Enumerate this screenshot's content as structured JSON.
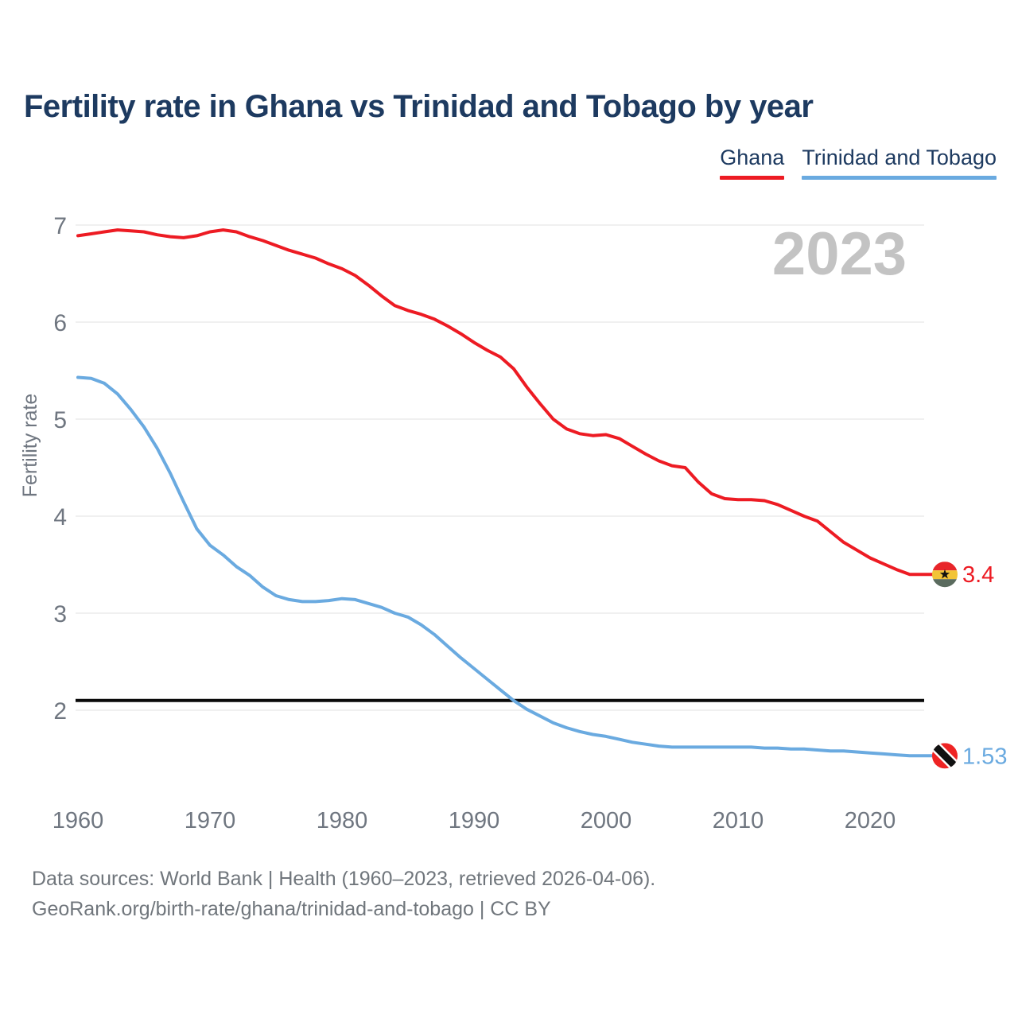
{
  "page_title": "Fertility rate in Ghana vs Trinidad and Tobago by year",
  "watermark": "2023",
  "legend": [
    {
      "label": "Ghana",
      "color": "#ed1b23"
    },
    {
      "label": "Trinidad and Tobago",
      "color": "#6aaae0"
    }
  ],
  "footer": {
    "line1": "Data sources: World Bank | Health (1960–2023, retrieved 2026-04-06).",
    "line2": "GeoRank.org/birth-rate/ghana/trinidad-and-tobago | CC BY"
  },
  "chart_data": {
    "type": "line",
    "title": "Fertility rate in Ghana vs Trinidad and Tobago by year",
    "xlabel": "",
    "ylabel": "Fertility rate",
    "x_ticks": [
      1960,
      1970,
      1980,
      1990,
      2000,
      2010,
      2020
    ],
    "y_ticks": [
      2,
      3,
      4,
      5,
      6,
      7
    ],
    "xlim": [
      1960,
      2023
    ],
    "ylim": [
      1.4,
      7.2
    ],
    "grid": "horizontal",
    "legend_position": "top-right",
    "watermark_year": "2023",
    "reference_line": {
      "value": 2.1,
      "color": "#0a0a0a"
    },
    "start_year": 1960,
    "end_year": 2023,
    "series": [
      {
        "name": "Ghana",
        "color": "#ed1b23",
        "flag": "ghana",
        "end_label": "3.4",
        "end_value": 3.4,
        "values": [
          6.89,
          6.91,
          6.93,
          6.95,
          6.94,
          6.93,
          6.9,
          6.88,
          6.87,
          6.89,
          6.93,
          6.95,
          6.93,
          6.88,
          6.84,
          6.79,
          6.74,
          6.7,
          6.66,
          6.6,
          6.55,
          6.48,
          6.38,
          6.27,
          6.17,
          6.12,
          6.08,
          6.03,
          5.96,
          5.88,
          5.79,
          5.71,
          5.64,
          5.52,
          5.33,
          5.16,
          5.0,
          4.9,
          4.85,
          4.83,
          4.84,
          4.8,
          4.72,
          4.64,
          4.57,
          4.52,
          4.5,
          4.35,
          4.23,
          4.18,
          4.17,
          4.17,
          4.16,
          4.12,
          4.06,
          4.0,
          3.95,
          3.84,
          3.73,
          3.65,
          3.57,
          3.51,
          3.45,
          3.4
        ]
      },
      {
        "name": "Trinidad and Tobago",
        "color": "#6aaae0",
        "flag": "trinidad-and-tobago",
        "end_label": "1.53",
        "end_value": 1.53,
        "values": [
          5.43,
          5.42,
          5.37,
          5.26,
          5.1,
          4.92,
          4.7,
          4.44,
          4.15,
          3.87,
          3.7,
          3.6,
          3.48,
          3.39,
          3.27,
          3.18,
          3.14,
          3.12,
          3.12,
          3.13,
          3.15,
          3.14,
          3.1,
          3.06,
          3.0,
          2.96,
          2.88,
          2.78,
          2.66,
          2.54,
          2.43,
          2.32,
          2.21,
          2.1,
          2.01,
          1.94,
          1.87,
          1.82,
          1.78,
          1.75,
          1.73,
          1.7,
          1.67,
          1.65,
          1.63,
          1.62,
          1.62,
          1.62,
          1.62,
          1.62,
          1.62,
          1.62,
          1.61,
          1.61,
          1.6,
          1.6,
          1.59,
          1.58,
          1.58,
          1.57,
          1.56,
          1.55,
          1.54,
          1.53
        ]
      }
    ]
  }
}
